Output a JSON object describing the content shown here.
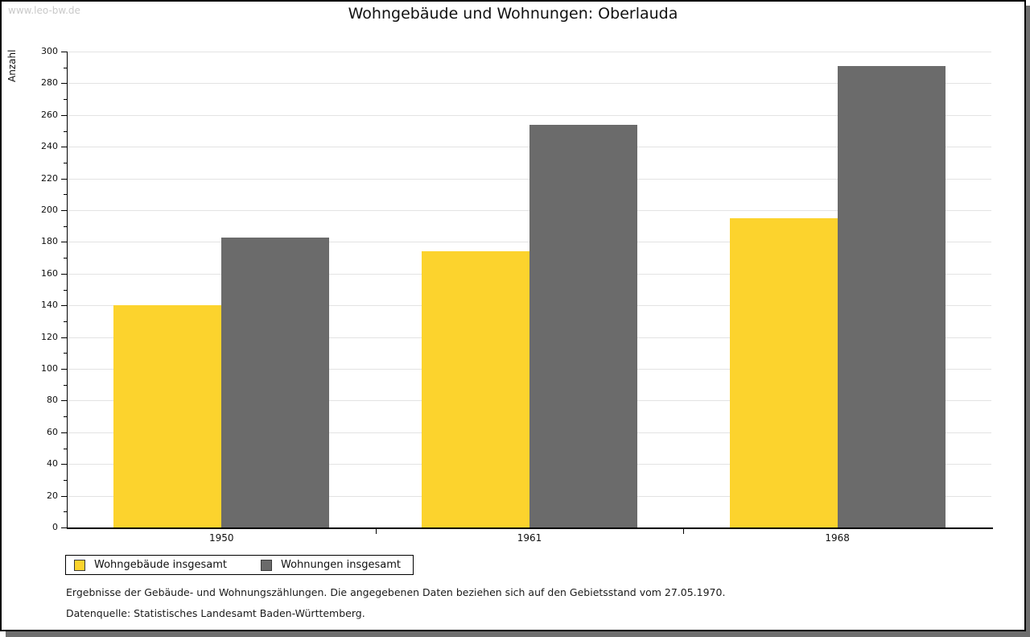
{
  "watermark": "www.leo-bw.de",
  "chart_data": {
    "type": "bar",
    "title": "Wohngebäude und Wohnungen: Oberlauda",
    "categories": [
      "1950",
      "1961",
      "1968"
    ],
    "series": [
      {
        "name": "Wohngebäude insgesamt",
        "color": "#fcd32d",
        "values": [
          140,
          174,
          195
        ]
      },
      {
        "name": "Wohnungen insgesamt",
        "color": "#6b6b6b",
        "values": [
          183,
          254,
          291
        ]
      }
    ],
    "xlabel": "",
    "ylabel": "Anzahl",
    "ylim": [
      0,
      300
    ],
    "y_major_step": 20,
    "y_minor_step": 10,
    "grid": "horizontal major gridlines, light gray",
    "legend_position": "bottom-left, boxed"
  },
  "colors": {
    "bar_yellow": "#fcd32d",
    "bar_gray": "#6b6b6b",
    "gridline": "#e3e3e3",
    "axis": "#000000",
    "frame_shadow": "#6e6e6e",
    "watermark": "#c9c9c9"
  },
  "footer": {
    "line1": "Ergebnisse der Gebäude- und Wohnungszählungen. Die angegebenen Daten beziehen sich auf den Gebietsstand vom 27.05.1970.",
    "line2": "Datenquelle: Statistisches Landesamt Baden-Württemberg."
  }
}
